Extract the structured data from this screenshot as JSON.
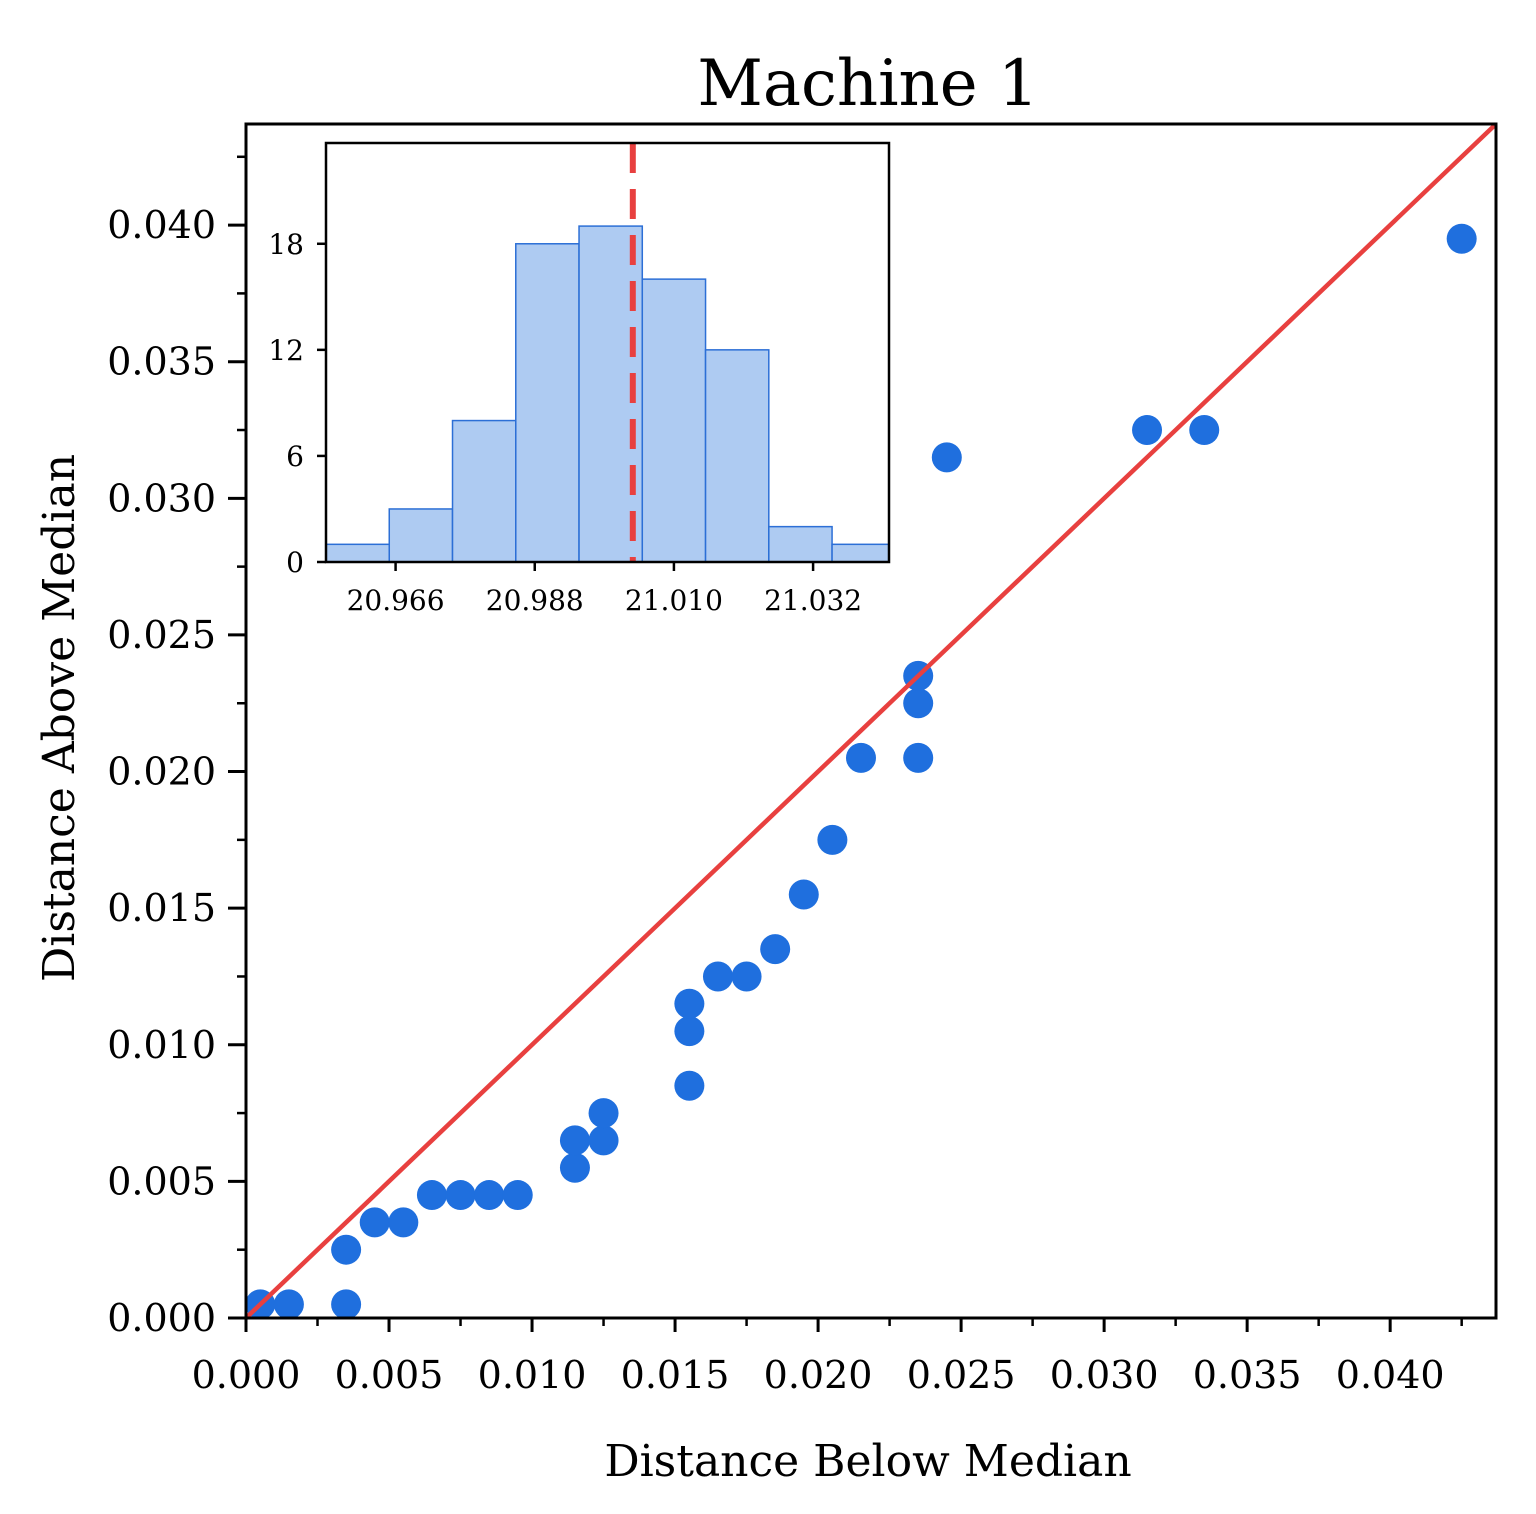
{
  "chart_data": [
    {
      "type": "scatter",
      "title": "Machine 1",
      "xlabel": "Distance Below Median",
      "ylabel": "Distance Above Median",
      "xlim": [
        0,
        0.0437
      ],
      "ylim": [
        0,
        0.0437
      ],
      "xticks": [
        "0.000",
        "0.005",
        "0.010",
        "0.015",
        "0.020",
        "0.025",
        "0.030",
        "0.035",
        "0.040"
      ],
      "yticks": [
        "0.000",
        "0.005",
        "0.010",
        "0.015",
        "0.020",
        "0.025",
        "0.030",
        "0.035",
        "0.040"
      ],
      "grid": false,
      "colors": {
        "points": "#1f6fde",
        "reference_line": "#e8403f"
      },
      "reference_line": {
        "description": "y = x",
        "from": [
          0,
          0
        ],
        "to": [
          0.0437,
          0.0437
        ]
      },
      "points": [
        {
          "x": 0.0005,
          "y": 0.0005
        },
        {
          "x": 0.0015,
          "y": 0.0005
        },
        {
          "x": 0.0035,
          "y": 0.0005
        },
        {
          "x": 0.0035,
          "y": 0.0025
        },
        {
          "x": 0.0045,
          "y": 0.0035
        },
        {
          "x": 0.0055,
          "y": 0.0035
        },
        {
          "x": 0.0065,
          "y": 0.0045
        },
        {
          "x": 0.0075,
          "y": 0.0045
        },
        {
          "x": 0.0085,
          "y": 0.0045
        },
        {
          "x": 0.0095,
          "y": 0.0045
        },
        {
          "x": 0.0115,
          "y": 0.0055
        },
        {
          "x": 0.0115,
          "y": 0.0065
        },
        {
          "x": 0.0125,
          "y": 0.0065
        },
        {
          "x": 0.0125,
          "y": 0.0075
        },
        {
          "x": 0.0155,
          "y": 0.0085
        },
        {
          "x": 0.0155,
          "y": 0.0105
        },
        {
          "x": 0.0155,
          "y": 0.0115
        },
        {
          "x": 0.0165,
          "y": 0.0125
        },
        {
          "x": 0.0175,
          "y": 0.0125
        },
        {
          "x": 0.0185,
          "y": 0.0135
        },
        {
          "x": 0.0195,
          "y": 0.0155
        },
        {
          "x": 0.0205,
          "y": 0.0175
        },
        {
          "x": 0.0215,
          "y": 0.0205
        },
        {
          "x": 0.0235,
          "y": 0.0205
        },
        {
          "x": 0.0235,
          "y": 0.0225
        },
        {
          "x": 0.0235,
          "y": 0.0235
        },
        {
          "x": 0.0245,
          "y": 0.0315
        },
        {
          "x": 0.0315,
          "y": 0.0325
        },
        {
          "x": 0.0335,
          "y": 0.0325
        },
        {
          "x": 0.0425,
          "y": 0.0395
        }
      ]
    },
    {
      "type": "bar",
      "subtype": "histogram",
      "description": "inset histogram",
      "xlim": [
        20.955,
        21.044
      ],
      "ylim": [
        0,
        23.7
      ],
      "xticks": [
        "20.966",
        "20.988",
        "21.010",
        "21.032"
      ],
      "yticks": [
        "0",
        "6",
        "12",
        "18"
      ],
      "colors": {
        "fill": "#aecbf2",
        "edge": "#2c6fd6",
        "median_line": "#e8403f"
      },
      "bin_edges": [
        20.955,
        20.965,
        20.975,
        20.985,
        20.995,
        21.005,
        21.015,
        21.025,
        21.035,
        21.045
      ],
      "counts": [
        1,
        3,
        8,
        18,
        19,
        16,
        12,
        2,
        1
      ],
      "median": 21.0035
    }
  ]
}
